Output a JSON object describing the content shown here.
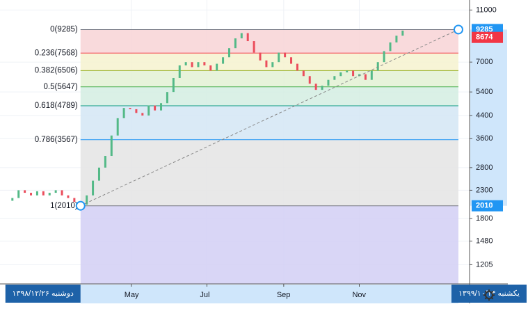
{
  "chart_data": {
    "type": "candlestick",
    "log_scale": true,
    "grid": true,
    "xlim": [
      15,
      394
    ],
    "ylim": [
      1020,
      12000
    ],
    "xticks": [
      {
        "value": 121,
        "label": "May"
      },
      {
        "value": 182,
        "label": "Jul"
      },
      {
        "value": 244,
        "label": "Sep"
      },
      {
        "value": 305,
        "label": "Nov"
      }
    ],
    "yticks": [
      1205,
      1480,
      1800,
      2300,
      2800,
      3600,
      4400,
      5400,
      7000,
      11000
    ],
    "up_color": "#53b987",
    "down_color": "#eb4d5c",
    "candles": {
      "x": [
        25,
        30,
        35,
        40,
        45,
        50,
        55,
        60,
        65,
        70,
        75,
        80,
        85,
        90,
        95,
        100,
        105,
        110,
        115,
        120,
        125,
        130,
        135,
        140,
        145,
        150,
        155,
        160,
        165,
        170,
        175,
        180,
        185,
        190,
        195,
        200,
        205,
        210,
        215,
        220,
        225,
        230,
        235,
        240,
        245,
        250,
        255,
        260,
        265,
        270,
        275,
        280,
        285,
        290,
        295,
        300,
        305,
        310,
        315,
        320,
        325,
        330,
        335,
        340
      ],
      "open": [
        2100,
        2150,
        2300,
        2250,
        2200,
        2280,
        2200,
        2250,
        2300,
        2200,
        2150,
        2080,
        2030,
        2200,
        2500,
        2800,
        3100,
        3700,
        4300,
        4700,
        4650,
        4500,
        4400,
        4800,
        4600,
        4900,
        5400,
        6100,
        6800,
        7000,
        6700,
        7000,
        6800,
        6500,
        6900,
        7300,
        7900,
        8600,
        9000,
        8400,
        7600,
        7100,
        6700,
        7000,
        7600,
        7300,
        6900,
        6500,
        6200,
        5800,
        5500,
        5700,
        6000,
        6200,
        6400,
        6500,
        6200,
        6300,
        6000,
        6500,
        7000,
        7700,
        8300,
        8800
      ],
      "close": [
        2150,
        2300,
        2250,
        2200,
        2280,
        2200,
        2250,
        2300,
        2200,
        2150,
        2080,
        2030,
        2200,
        2500,
        2800,
        3100,
        3700,
        4300,
        4700,
        4650,
        4500,
        4400,
        4800,
        4600,
        4900,
        5400,
        6100,
        6800,
        7000,
        6700,
        7000,
        6800,
        6500,
        6900,
        7300,
        7900,
        8600,
        9000,
        8400,
        7600,
        7100,
        6700,
        7000,
        7600,
        7300,
        6900,
        6500,
        6200,
        5800,
        5500,
        5700,
        6000,
        6200,
        6400,
        6500,
        6200,
        6300,
        6000,
        6500,
        7000,
        7700,
        8300,
        8800,
        9200
      ]
    },
    "fib_start_x": 80,
    "fib_end_x": 385,
    "fib_levels": [
      {
        "label": "0(9285)",
        "value": 9285,
        "color": "#787b86",
        "band_color": "#f8d3d6"
      },
      {
        "label": "0.236(7568)",
        "value": 7568,
        "color": "#f23645",
        "band_color": "#f6f2cf"
      },
      {
        "label": "0.382(6506)",
        "value": 6506,
        "color": "#9fb52e",
        "band_color": "#e3f1d3"
      },
      {
        "label": "0.5(5647)",
        "value": 5647,
        "color": "#4caf50",
        "band_color": "#d4ede2"
      },
      {
        "label": "0.618(4789)",
        "value": 4789,
        "color": "#089981",
        "band_color": "#d3e6f4"
      },
      {
        "label": "0.786(3567)",
        "value": 3567,
        "color": "#2196f3",
        "band_color": "#e4e4e4"
      },
      {
        "label": "1(2010)",
        "value": 2010,
        "color": "#787b86",
        "band_color": "#d2cff4"
      }
    ],
    "trend_line": {
      "x": [
        80,
        385
      ],
      "y": [
        2010,
        9285
      ]
    },
    "price_badges": [
      {
        "value": 9285,
        "color": "#2196f3"
      },
      {
        "value": 8674,
        "color": "#f23645"
      },
      {
        "value": 2010,
        "color": "#2196f3"
      }
    ],
    "date_badges": [
      {
        "value": 80,
        "label": "دوشنبه ۱۳۹۸/۱۲/۲۶"
      },
      {
        "value": 385,
        "label": "یکشنبه ۱۳۹۹/۱۰/۱۴"
      }
    ]
  }
}
